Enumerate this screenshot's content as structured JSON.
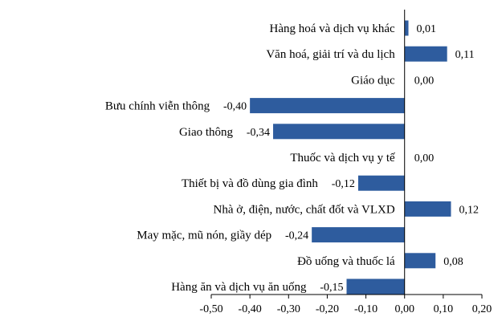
{
  "chart_data": {
    "type": "bar",
    "orientation": "horizontal",
    "categories": [
      "Hàng hoá và dịch vụ khác",
      "Văn hoá, giải trí và du lịch",
      "Giáo dục",
      "Bưu chính viễn thông",
      "Giao thông",
      "Thuốc và dịch vụ y tế",
      "Thiết bị và đồ dùng gia đình",
      "Nhà ở, điện, nước, chất đốt và VLXD",
      "May mặc, mũ nón, giầy dép",
      "Đồ uống và thuốc lá",
      "Hàng ăn và dịch vụ ăn uống"
    ],
    "values": [
      0.01,
      0.11,
      0.0,
      -0.4,
      -0.34,
      0.0,
      -0.12,
      0.12,
      -0.24,
      0.08,
      -0.15
    ],
    "value_labels": [
      "0,01",
      "0,11",
      "0,00",
      "-0,40",
      "-0,34",
      "0,00",
      "-0,12",
      "0,12",
      "-0,24",
      "0,08",
      "-0,15"
    ],
    "xlim": [
      -0.5,
      0.2
    ],
    "ticks": [
      -0.5,
      -0.4,
      -0.3,
      -0.2,
      -0.1,
      0.0,
      0.1,
      0.2
    ],
    "tick_labels": [
      "-0,50",
      "-0,40",
      "-0,30",
      "-0,20",
      "-0,10",
      "0,00",
      "0,10",
      "0,20"
    ],
    "title": "",
    "xlabel": "",
    "ylabel": "",
    "grid": false,
    "legend": "none",
    "bar_color": "#2e5c9e"
  }
}
